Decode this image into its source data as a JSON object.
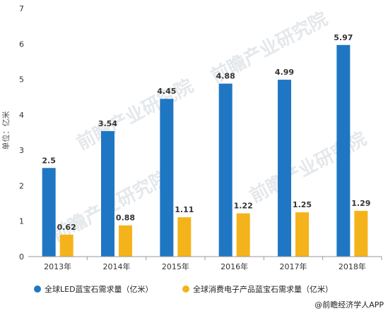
{
  "chart_data": {
    "type": "bar",
    "categories": [
      "2013年",
      "2014年",
      "2015年",
      "2016年",
      "2017年",
      "2018年"
    ],
    "series": [
      {
        "name": "全球LED蓝宝石需求量（亿米）",
        "values": [
          2.5,
          3.54,
          4.45,
          4.88,
          4.99,
          5.97
        ],
        "labels": [
          "2.5",
          "3.54",
          "4.45",
          "4.88",
          "4.99",
          "5.97"
        ],
        "color": "#1f77c4"
      },
      {
        "name": "全球消费电子产品蓝宝石需求量（亿米）",
        "values": [
          0.62,
          0.88,
          1.11,
          1.22,
          1.25,
          1.29
        ],
        "labels": [
          "0.62",
          "0.88",
          "1.11",
          "1.22",
          "1.25",
          "1.29"
        ],
        "color": "#f5b31b"
      }
    ],
    "ylabel": "单位：亿米",
    "xlabel": "",
    "ylim": [
      0,
      7
    ],
    "yticks": [
      "0",
      "1",
      "2",
      "3",
      "4",
      "5",
      "6",
      "7"
    ],
    "grid": false,
    "legend_position": "bottom"
  },
  "watermark": "前瞻产业研究院",
  "source": "@前瞻经济学人APP"
}
